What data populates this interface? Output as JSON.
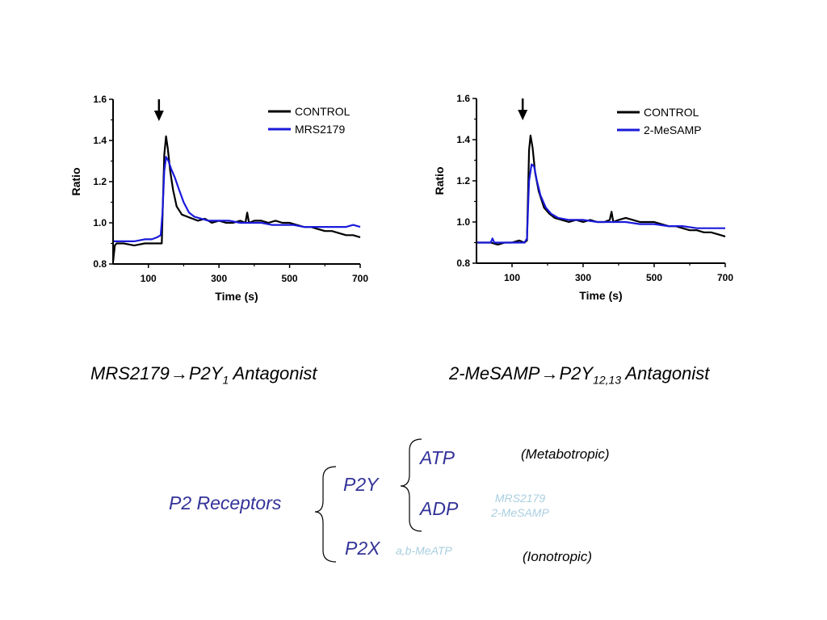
{
  "chart_data": [
    {
      "type": "line",
      "xlabel": "Time (s)",
      "ylabel": "Ratio",
      "xlim": [
        0,
        700
      ],
      "ylim": [
        0.8,
        1.6
      ],
      "xticks": [
        100,
        300,
        500,
        700
      ],
      "xtick_labels": [
        "100",
        "300",
        "500",
        "700"
      ],
      "yticks": [
        0.8,
        1.0,
        1.2,
        1.4,
        1.6
      ],
      "ytick_labels": [
        "0.8",
        "1.0",
        "1.2",
        "1.4",
        "1.6"
      ],
      "annotation": {
        "type": "arrow",
        "x": 130
      },
      "legend_position": "top-right",
      "series": [
        {
          "name": "CONTROL",
          "color": "#000000",
          "x": [
            0,
            5,
            10,
            30,
            60,
            90,
            110,
            125,
            138,
            145,
            150,
            155,
            162,
            170,
            180,
            195,
            210,
            225,
            240,
            260,
            280,
            300,
            320,
            340,
            360,
            375,
            380,
            385,
            400,
            420,
            440,
            460,
            480,
            500,
            520,
            540,
            560,
            580,
            600,
            620,
            640,
            660,
            680,
            700
          ],
          "y": [
            0.81,
            0.89,
            0.9,
            0.9,
            0.89,
            0.9,
            0.9,
            0.9,
            0.9,
            1.33,
            1.42,
            1.36,
            1.25,
            1.16,
            1.08,
            1.04,
            1.03,
            1.02,
            1.01,
            1.02,
            1.0,
            1.01,
            1.0,
            1.0,
            1.01,
            1.0,
            1.05,
            1.0,
            1.01,
            1.01,
            1.0,
            1.01,
            1.0,
            1.0,
            0.99,
            0.98,
            0.98,
            0.97,
            0.96,
            0.96,
            0.95,
            0.94,
            0.94,
            0.93
          ]
        },
        {
          "name": "MRS2179",
          "color": "#1a1adb",
          "x": [
            0,
            5,
            30,
            60,
            90,
            110,
            125,
            135,
            140,
            145,
            150,
            157,
            165,
            175,
            185,
            200,
            215,
            230,
            250,
            270,
            300,
            330,
            360,
            390,
            420,
            450,
            480,
            510,
            540,
            570,
            600,
            630,
            660,
            680,
            700
          ],
          "y": [
            0.91,
            0.91,
            0.91,
            0.91,
            0.92,
            0.92,
            0.93,
            0.94,
            1.05,
            1.25,
            1.32,
            1.3,
            1.26,
            1.22,
            1.17,
            1.1,
            1.05,
            1.03,
            1.02,
            1.01,
            1.01,
            1.01,
            1.0,
            1.0,
            1.0,
            0.99,
            0.99,
            0.99,
            0.98,
            0.98,
            0.98,
            0.98,
            0.98,
            0.99,
            0.98
          ]
        }
      ]
    },
    {
      "type": "line",
      "xlabel": "Time (s)",
      "ylabel": "Ratio",
      "xlim": [
        0,
        700
      ],
      "ylim": [
        0.8,
        1.6
      ],
      "xticks": [
        100,
        300,
        500,
        700
      ],
      "xtick_labels": [
        "100",
        "300",
        "500",
        "700"
      ],
      "yticks": [
        0.8,
        1.0,
        1.2,
        1.4,
        1.6
      ],
      "ytick_labels": [
        "0.8",
        "1.0",
        "1.2",
        "1.4",
        "1.6"
      ],
      "annotation": {
        "type": "arrow",
        "x": 130
      },
      "legend_position": "top-right",
      "series": [
        {
          "name": "CONTROL",
          "color": "#000000",
          "x": [
            0,
            20,
            40,
            60,
            80,
            100,
            120,
            135,
            142,
            148,
            152,
            158,
            165,
            175,
            190,
            205,
            220,
            240,
            260,
            280,
            300,
            320,
            340,
            360,
            375,
            380,
            385,
            400,
            420,
            440,
            460,
            480,
            500,
            520,
            540,
            560,
            580,
            600,
            620,
            640,
            660,
            680,
            700
          ],
          "y": [
            0.9,
            0.9,
            0.9,
            0.89,
            0.9,
            0.9,
            0.91,
            0.9,
            0.91,
            1.35,
            1.42,
            1.36,
            1.24,
            1.15,
            1.07,
            1.04,
            1.02,
            1.01,
            1.0,
            1.01,
            1.0,
            1.01,
            1.0,
            1.0,
            1.01,
            1.05,
            1.0,
            1.01,
            1.02,
            1.01,
            1.0,
            1.0,
            1.0,
            0.99,
            0.98,
            0.98,
            0.97,
            0.96,
            0.96,
            0.95,
            0.95,
            0.94,
            0.93
          ]
        },
        {
          "name": "2-MeSAMP",
          "color": "#1a1adb",
          "x": [
            0,
            20,
            40,
            45,
            50,
            60,
            80,
            100,
            120,
            135,
            142,
            148,
            155,
            162,
            170,
            180,
            195,
            210,
            230,
            260,
            300,
            340,
            380,
            420,
            460,
            500,
            540,
            580,
            620,
            660,
            700
          ],
          "y": [
            0.9,
            0.9,
            0.9,
            0.92,
            0.9,
            0.9,
            0.9,
            0.9,
            0.9,
            0.9,
            0.92,
            1.2,
            1.28,
            1.27,
            1.2,
            1.13,
            1.07,
            1.04,
            1.02,
            1.01,
            1.01,
            1.0,
            1.0,
            1.0,
            0.99,
            0.99,
            0.98,
            0.98,
            0.97,
            0.97,
            0.97
          ]
        }
      ]
    }
  ],
  "captions": {
    "left": {
      "drug": "MRS2179",
      "arrow": "→",
      "target": "P2Y",
      "subscript": "1",
      "suffix": " Antagonist"
    },
    "right": {
      "drug": "2-MeSAMP",
      "arrow": "→",
      "target": "P2Y",
      "subscript": "12,13",
      "suffix": " Antagonist"
    }
  },
  "diagram": {
    "root": "P2 Receptors",
    "p2y": "P2Y",
    "p2x": "P2X",
    "atp": "ATP",
    "adp": "ADP",
    "metabotropic": "(Metabotropic)",
    "ionotropic": "(Ionotropic)",
    "antagonist_1": "MRS2179",
    "antagonist_2": "2-MeSAMP",
    "p2x_agonist": "a,b-MeATP",
    "colors": {
      "node": "#333399",
      "drug": "#a9cfe0",
      "note": "#000000"
    }
  }
}
